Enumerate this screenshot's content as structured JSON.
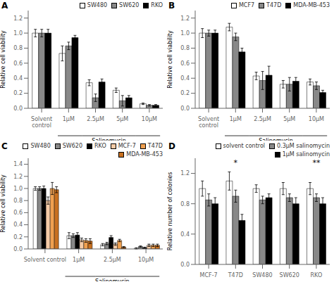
{
  "chart_data": [
    {
      "type": "bar",
      "title": "A",
      "xlabel": "Salinomycin",
      "ylabel": "Relative cell viability",
      "categories": [
        "Solvent\ncontrol",
        "1μM",
        "2.5μM",
        "5μM",
        "10μM"
      ],
      "series": [
        {
          "name": "SW480",
          "color": "white",
          "values": [
            1.0,
            0.73,
            0.34,
            0.24,
            0.06
          ],
          "errors": [
            0.05,
            0.1,
            0.04,
            0.03,
            0.01
          ]
        },
        {
          "name": "SW620",
          "color": "#888888",
          "values": [
            1.0,
            0.83,
            0.14,
            0.1,
            0.04
          ],
          "errors": [
            0.05,
            0.05,
            0.05,
            0.07,
            0.01
          ]
        },
        {
          "name": "RKO",
          "color": "black",
          "values": [
            1.0,
            0.94,
            0.35,
            0.14,
            0.04
          ],
          "errors": [
            0.05,
            0.03,
            0.04,
            0.03,
            0.01
          ]
        }
      ],
      "ylim": [
        0,
        1.3
      ],
      "yticks": [
        {
          "value": 0,
          "label": "0.0"
        },
        0.2,
        0.4,
        0.6,
        0.8,
        {
          "value": 1,
          "label": "1.0"
        },
        1.2
      ],
      "legend": "upper right"
    },
    {
      "type": "bar",
      "title": "B",
      "xlabel": "Salinomycin",
      "ylabel": "Relative cell viability",
      "categories": [
        "Solvent\ncontrol",
        "1μM",
        "2.5μM",
        "5μM",
        "10μM"
      ],
      "series": [
        {
          "name": "MCF7",
          "color": "white",
          "values": [
            1.0,
            1.08,
            0.43,
            0.32,
            0.35
          ],
          "errors": [
            0.06,
            0.05,
            0.05,
            0.05,
            0.04
          ]
        },
        {
          "name": "T47D",
          "color": "#888888",
          "values": [
            1.0,
            0.95,
            0.37,
            0.32,
            0.3
          ],
          "errors": [
            0.04,
            0.05,
            0.12,
            0.09,
            0.05
          ]
        },
        {
          "name": "MDA-MB-453",
          "color": "black",
          "values": [
            1.0,
            0.75,
            0.44,
            0.36,
            0.21
          ],
          "errors": [
            0.04,
            0.05,
            0.12,
            0.05,
            0.03
          ]
        }
      ],
      "ylim": [
        0,
        1.3
      ],
      "yticks": [
        {
          "value": 0,
          "label": "0.0"
        },
        0.2,
        0.4,
        0.6,
        0.8,
        {
          "value": 1,
          "label": "1.0"
        },
        1.2
      ],
      "legend": "upper right"
    },
    {
      "type": "bar",
      "title": "C",
      "xlabel": "Salinomycin",
      "ylabel": "Relative cell viability",
      "categories": [
        "Solvent control",
        "1μM",
        "2.5μM",
        "10μM"
      ],
      "series": [
        {
          "name": "SW480",
          "color": "white",
          "values": [
            1.0,
            0.22,
            0.07,
            0.01
          ],
          "errors": [
            0.03,
            0.05,
            0.02,
            0.01
          ]
        },
        {
          "name": "SW620",
          "color": "#888888",
          "values": [
            1.0,
            0.22,
            0.09,
            0.04
          ],
          "errors": [
            0.03,
            0.03,
            0.02,
            0.01
          ]
        },
        {
          "name": "RKO",
          "color": "black",
          "values": [
            1.0,
            0.23,
            0.19,
            0.02
          ],
          "errors": [
            0.04,
            0.04,
            0.03,
            0.01
          ]
        },
        {
          "name": "MCF-7",
          "color": "#f5cba7",
          "values": [
            0.8,
            0.15,
            0.08,
            0.06
          ],
          "errors": [
            0.06,
            0.03,
            0.02,
            0.02
          ]
        },
        {
          "name": "T47D",
          "color": "#f0a050",
          "values": [
            1.0,
            0.14,
            0.14,
            0.06
          ],
          "errors": [
            0.1,
            0.03,
            0.02,
            0.02
          ]
        },
        {
          "name": "MDA-MB-453",
          "color": "#c87020",
          "values": [
            0.98,
            0.13,
            0.03,
            0.06
          ],
          "errors": [
            0.05,
            0.04,
            0.01,
            0.02
          ]
        }
      ],
      "ylim": [
        0,
        1.5
      ],
      "yticks": [
        {
          "value": 0,
          "label": "0.0"
        },
        0.2,
        0.4,
        0.6,
        0.8,
        {
          "value": 1,
          "label": "1.0"
        },
        1.2,
        1.4
      ],
      "legend": "upper right"
    },
    {
      "type": "bar",
      "title": "D",
      "ylabel": "Relative number of colonies",
      "categories": [
        "MCF-7",
        "T47D",
        "SW480",
        "SW620",
        "RKO"
      ],
      "series": [
        {
          "name": "solvent control",
          "color": "white",
          "values": [
            1.0,
            1.1,
            1.0,
            1.0,
            1.0
          ],
          "errors": [
            0.1,
            0.12,
            0.05,
            0.08,
            0.08
          ]
        },
        {
          "name": "0.3μM salinomycin",
          "color": "#888888",
          "values": [
            0.85,
            0.9,
            0.85,
            0.88,
            0.88
          ],
          "errors": [
            0.08,
            0.08,
            0.05,
            0.05,
            0.05
          ]
        },
        {
          "name": "1μM salinomycin",
          "color": "black",
          "values": [
            0.8,
            0.58,
            0.88,
            0.8,
            0.8
          ],
          "errors": [
            0.08,
            0.08,
            0.05,
            0.08,
            0.08
          ]
        }
      ],
      "ylim": [
        0,
        1.4
      ],
      "yticks": [
        {
          "value": 0,
          "label": "0.0"
        },
        0.4,
        0.8,
        1.2
      ],
      "annotations": [
        {
          "x": "T47D",
          "y": 1.25,
          "text": "*"
        },
        {
          "x": "RKO",
          "y": 1.25,
          "text": "**"
        }
      ],
      "legend": "upper right"
    }
  ]
}
